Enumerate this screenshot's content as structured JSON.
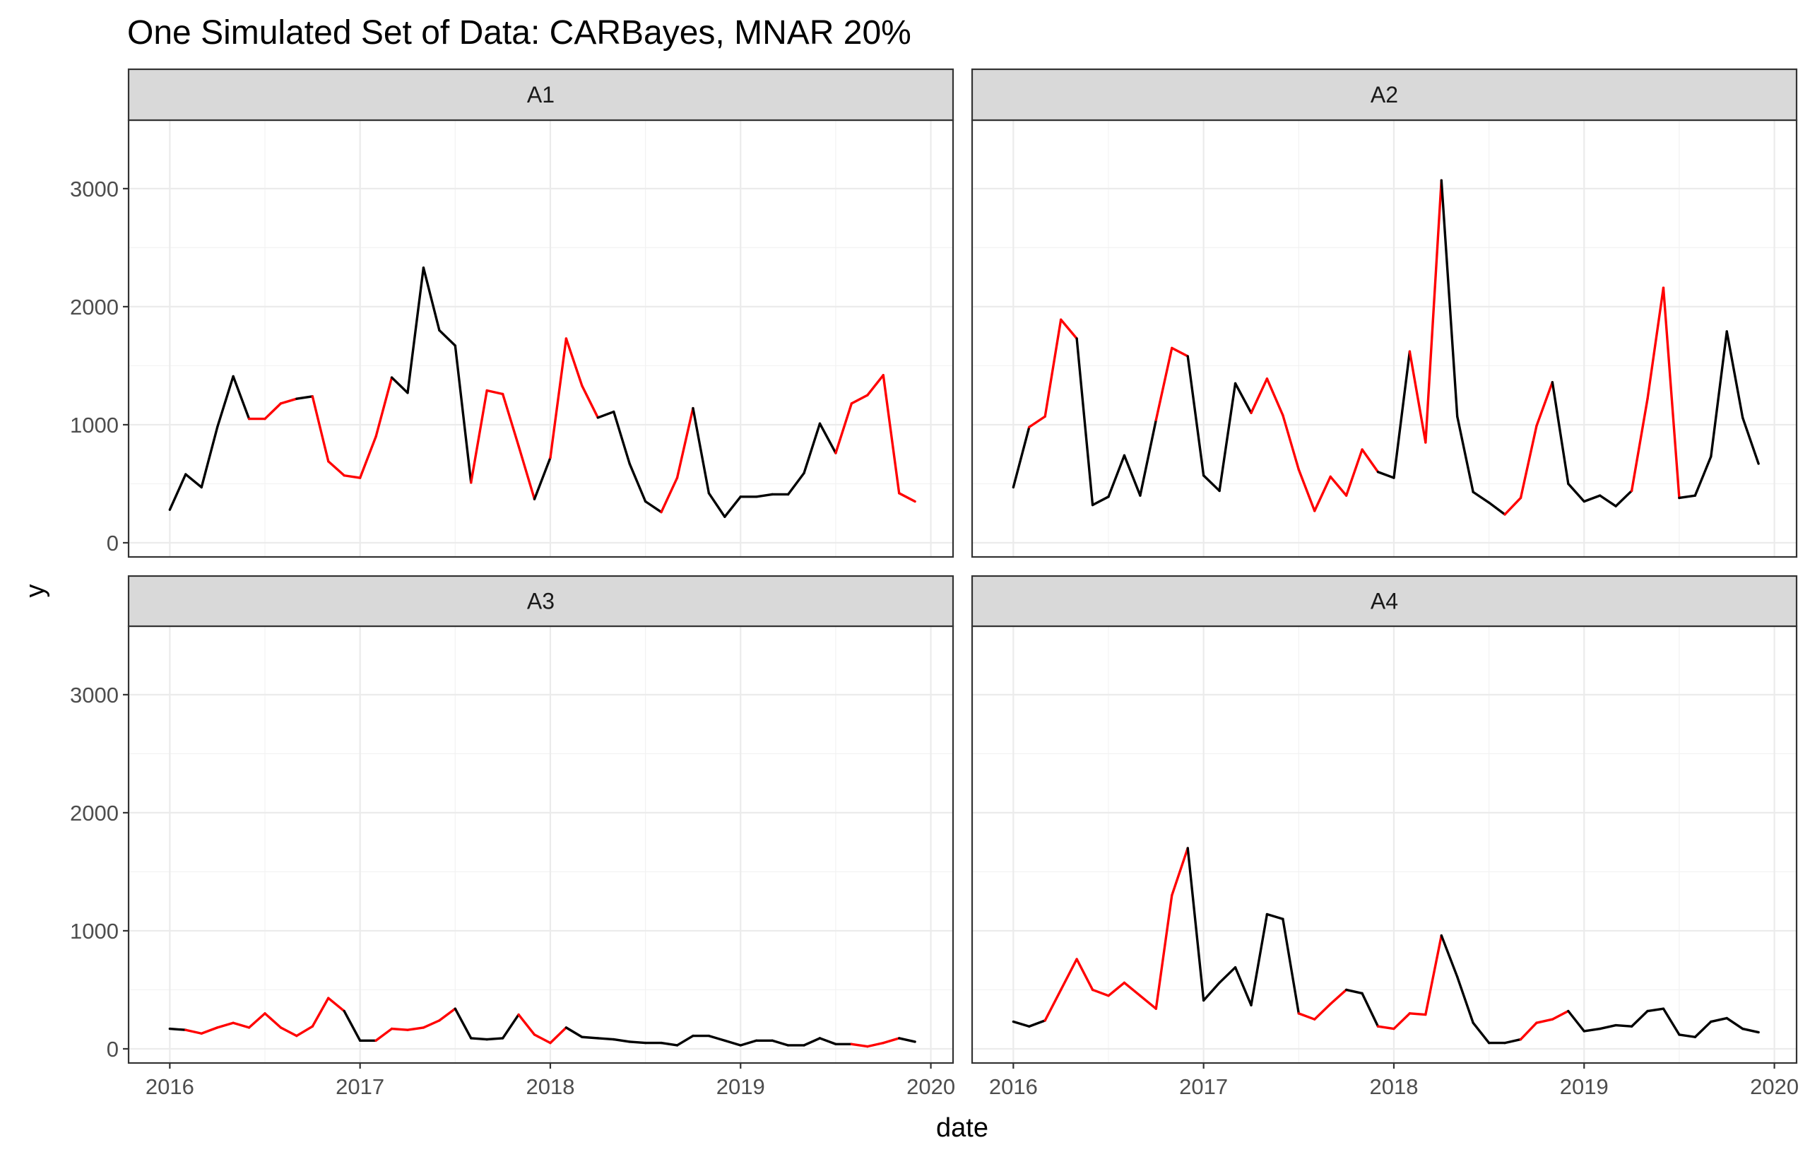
{
  "chart_data": {
    "type": "line",
    "title": "One Simulated Set of Data: CARBayes, MNAR 20%",
    "xlabel": "date",
    "ylabel": "y",
    "x_start": "2016-01",
    "x_step": "1 month",
    "x_ticks": [
      "2016",
      "2017",
      "2018",
      "2019",
      "2020"
    ],
    "ylim": [
      -120,
      3580
    ],
    "y_ticks": [
      0,
      1000,
      2000,
      3000
    ],
    "grid": true,
    "colors": {
      "observed": "#000000",
      "missing": "#ff0000"
    },
    "facets": [
      {
        "name": "A1",
        "values": [
          280,
          580,
          470,
          980,
          1410,
          1050,
          1050,
          1180,
          1220,
          1240,
          690,
          570,
          550,
          900,
          1400,
          1270,
          2330,
          1800,
          1670,
          510,
          1290,
          1260,
          820,
          370,
          720,
          1730,
          1330,
          1060,
          1110,
          670,
          350,
          260,
          550,
          1140,
          420,
          220,
          390,
          390,
          410,
          410,
          590,
          1010,
          760,
          1180,
          1250,
          1420,
          420,
          350
        ],
        "missing": [
          0,
          0,
          0,
          0,
          0,
          0,
          1,
          1,
          1,
          0,
          1,
          1,
          1,
          1,
          1,
          0,
          0,
          0,
          0,
          0,
          1,
          1,
          1,
          1,
          0,
          1,
          1,
          1,
          0,
          0,
          0,
          0,
          1,
          1,
          0,
          0,
          0,
          0,
          0,
          0,
          0,
          0,
          0,
          1,
          1,
          1,
          1,
          1
        ]
      },
      {
        "name": "A2",
        "values": [
          470,
          980,
          1070,
          1890,
          1730,
          320,
          390,
          740,
          400,
          1040,
          1650,
          1580,
          570,
          440,
          1350,
          1100,
          1390,
          1080,
          620,
          270,
          560,
          400,
          790,
          600,
          550,
          1620,
          850,
          3070,
          1070,
          430,
          340,
          240,
          380,
          990,
          1360,
          500,
          350,
          400,
          310,
          440,
          1220,
          2160,
          380,
          400,
          730,
          1790,
          1060,
          670
        ],
        "missing": [
          0,
          0,
          1,
          1,
          1,
          0,
          0,
          0,
          0,
          0,
          1,
          1,
          0,
          0,
          0,
          0,
          1,
          1,
          1,
          1,
          1,
          1,
          1,
          1,
          0,
          0,
          1,
          1,
          0,
          0,
          0,
          0,
          1,
          1,
          1,
          0,
          0,
          0,
          0,
          0,
          1,
          1,
          1,
          0,
          0,
          0,
          0,
          0
        ]
      },
      {
        "name": "A3",
        "values": [
          170,
          160,
          130,
          180,
          220,
          180,
          300,
          180,
          110,
          190,
          430,
          320,
          70,
          70,
          170,
          160,
          180,
          240,
          340,
          90,
          80,
          90,
          290,
          120,
          50,
          180,
          100,
          90,
          80,
          60,
          50,
          50,
          30,
          110,
          110,
          70,
          30,
          70,
          70,
          30,
          30,
          90,
          40,
          40,
          20,
          50,
          90,
          60
        ],
        "missing": [
          0,
          0,
          1,
          1,
          1,
          1,
          1,
          1,
          1,
          1,
          1,
          1,
          0,
          0,
          1,
          1,
          1,
          1,
          1,
          0,
          0,
          0,
          0,
          1,
          1,
          1,
          0,
          0,
          0,
          0,
          0,
          0,
          0,
          0,
          0,
          0,
          0,
          0,
          0,
          0,
          0,
          0,
          0,
          0,
          1,
          1,
          1,
          0
        ]
      },
      {
        "name": "A4",
        "values": [
          230,
          190,
          240,
          500,
          760,
          500,
          450,
          560,
          450,
          340,
          1300,
          1700,
          410,
          560,
          690,
          370,
          1140,
          1100,
          300,
          250,
          380,
          500,
          470,
          190,
          170,
          300,
          290,
          960,
          610,
          220,
          50,
          50,
          80,
          220,
          250,
          320,
          150,
          170,
          200,
          190,
          320,
          340,
          120,
          100,
          230,
          260,
          170,
          140
        ],
        "missing": [
          0,
          0,
          0,
          1,
          1,
          1,
          1,
          1,
          1,
          1,
          1,
          1,
          0,
          0,
          0,
          0,
          0,
          0,
          0,
          1,
          1,
          1,
          0,
          0,
          1,
          1,
          1,
          1,
          0,
          0,
          0,
          0,
          0,
          1,
          1,
          1,
          0,
          0,
          0,
          0,
          0,
          0,
          0,
          0,
          0,
          0,
          0,
          0
        ]
      }
    ]
  }
}
